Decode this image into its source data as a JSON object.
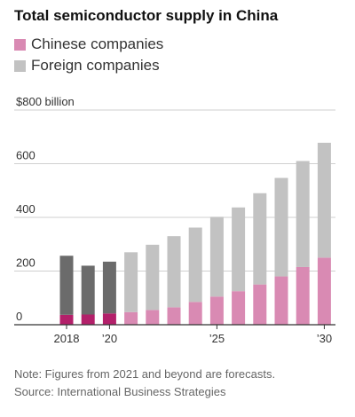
{
  "chart_data": {
    "type": "bar",
    "stacked": true,
    "title": "Total semiconductor supply in China",
    "categories": [
      "2018",
      "2019",
      "2020",
      "2021",
      "2022",
      "2023",
      "2024",
      "2025",
      "2026",
      "2027",
      "2028",
      "2029",
      "2030"
    ],
    "x_tick_labels": [
      {
        "index": 0,
        "label": "2018"
      },
      {
        "index": 2,
        "label": "’20"
      },
      {
        "index": 7,
        "label": "’25"
      },
      {
        "index": 12,
        "label": "’30"
      }
    ],
    "forecast_start_index": 3,
    "series": [
      {
        "name": "Chinese companies",
        "color": "#d98ab3",
        "actual_color": "#b3206a",
        "values": [
          37,
          38,
          42,
          47,
          55,
          65,
          85,
          105,
          125,
          150,
          180,
          215,
          250
        ]
      },
      {
        "name": "Foreign companies",
        "color": "#c2c2c2",
        "actual_color": "#6b6b6b",
        "values": [
          220,
          182,
          193,
          223,
          243,
          265,
          277,
          297,
          312,
          340,
          367,
          395,
          428
        ]
      }
    ],
    "y_ticks": [
      {
        "value": 0,
        "label": "0"
      },
      {
        "value": 200,
        "label": "200"
      },
      {
        "value": 400,
        "label": "400"
      },
      {
        "value": 600,
        "label": "600"
      },
      {
        "value": 800,
        "label": "$800 billion"
      }
    ],
    "ylim": [
      0,
      800
    ],
    "grid": true
  },
  "notes": {
    "note": "Note: Figures from 2021 and beyond are forecasts.",
    "source": "Source: International Business Strategies"
  }
}
